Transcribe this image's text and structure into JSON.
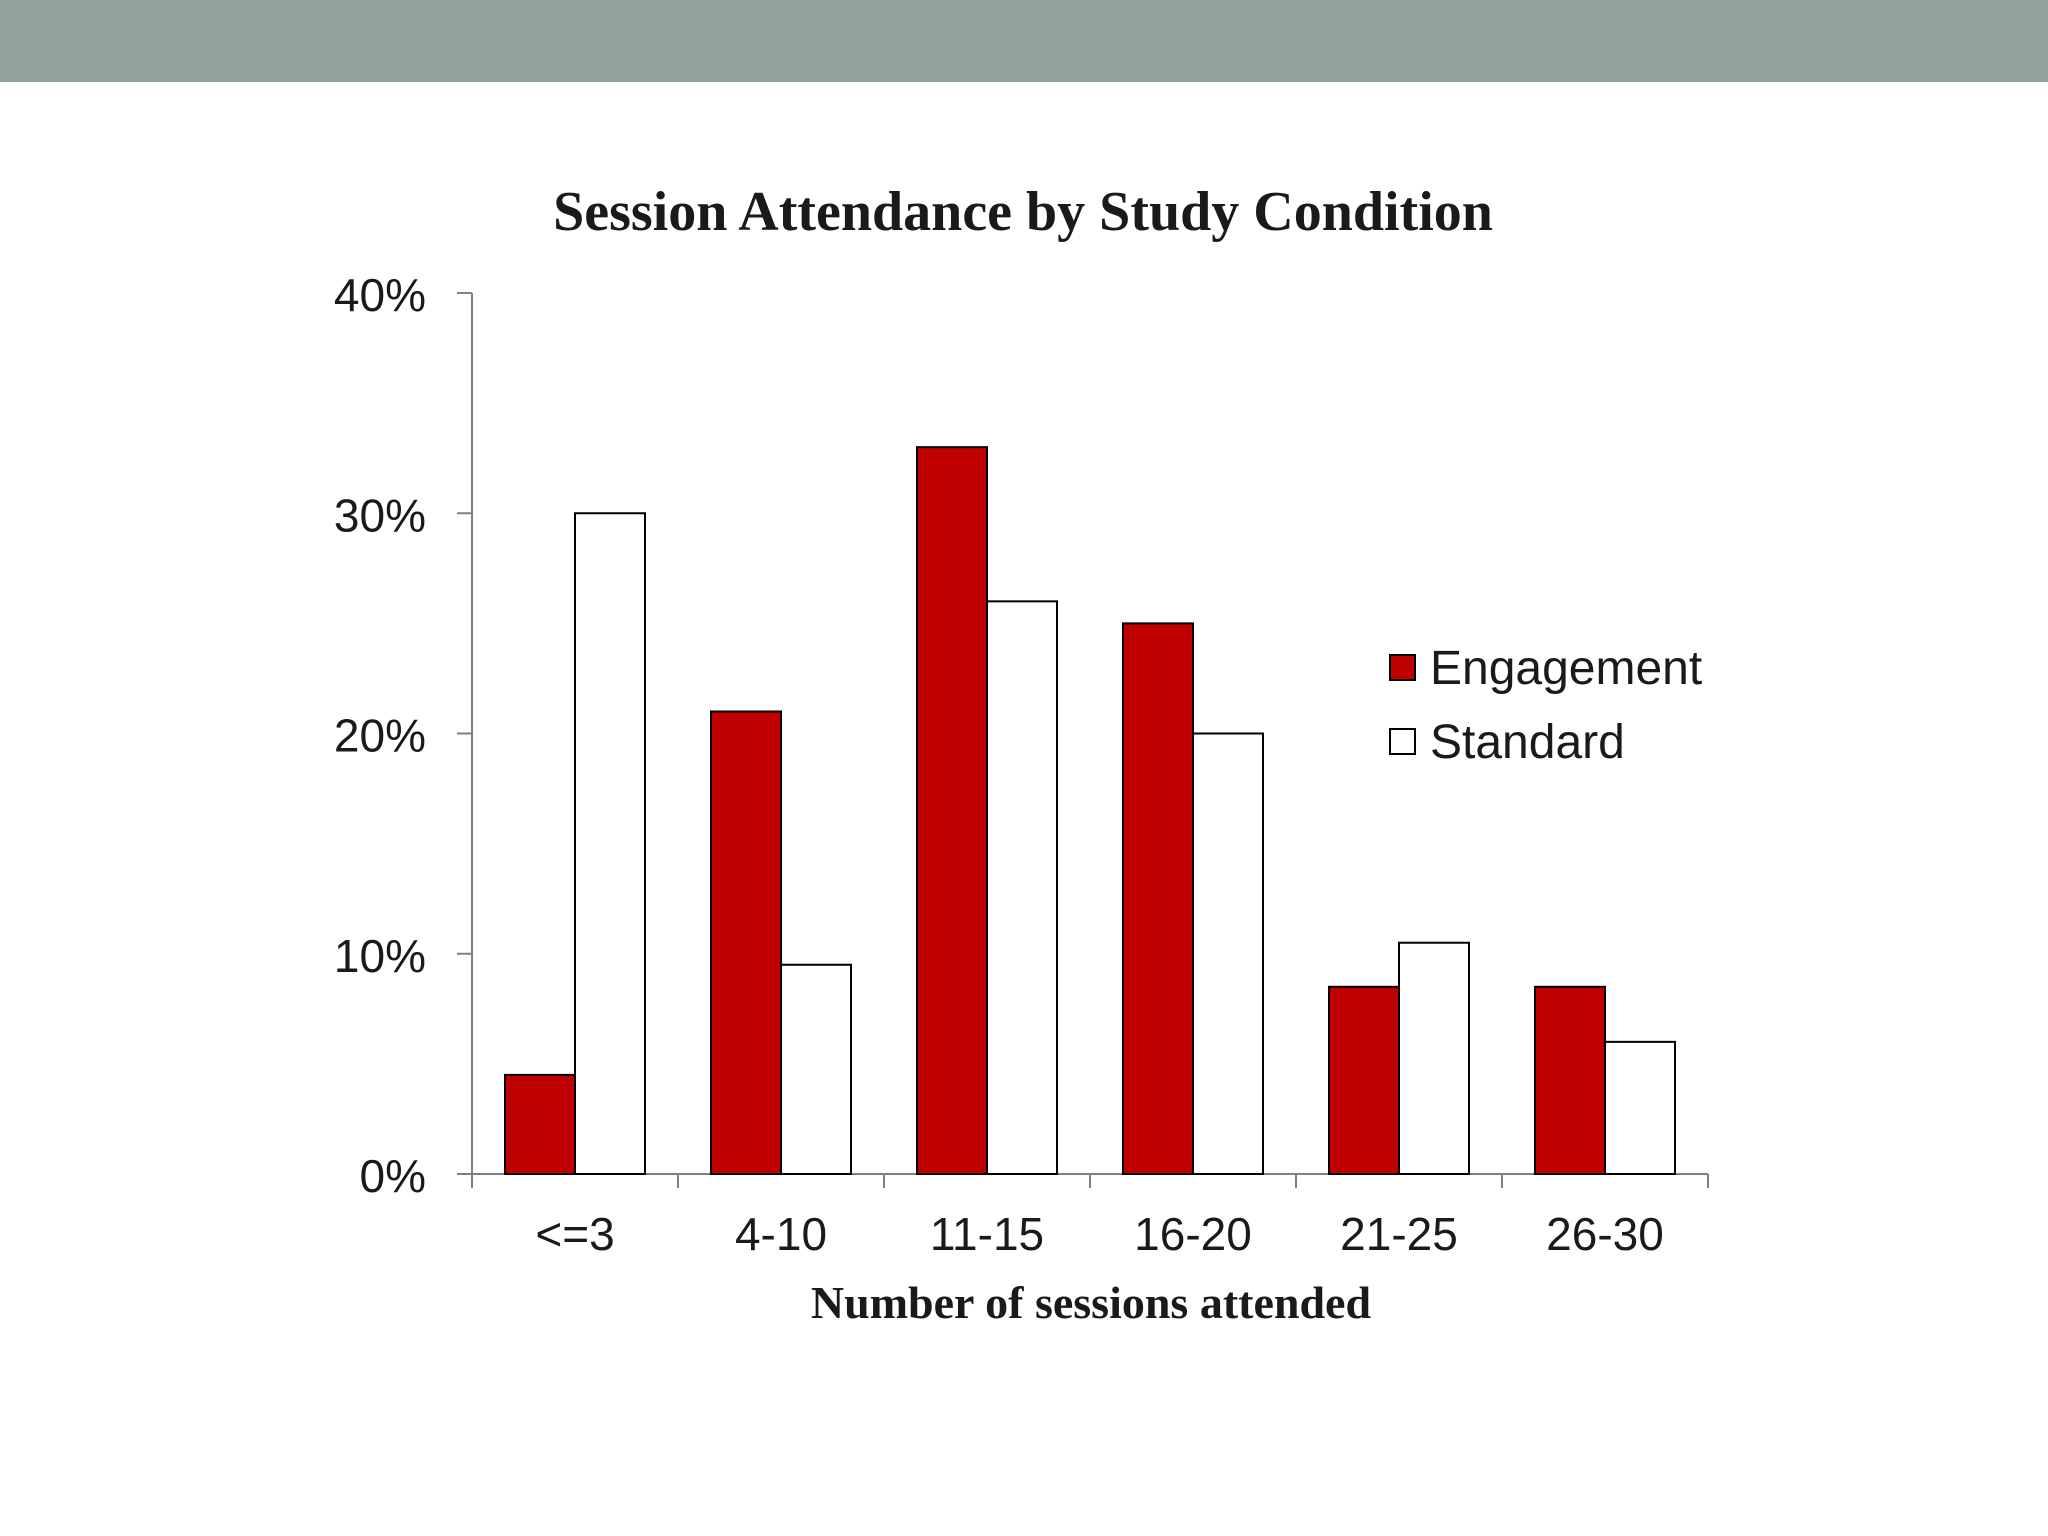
{
  "chart_data": {
    "type": "bar",
    "title": "Session Attendance by Study Condition",
    "xlabel": "Number of sessions attended",
    "ylabel": "",
    "categories": [
      "<=3",
      "4-10",
      "11-15",
      "16-20",
      "21-25",
      "26-30"
    ],
    "series": [
      {
        "name": "Engagement",
        "values": [
          4.5,
          21,
          33,
          25,
          8.5,
          8.5
        ],
        "color": "#c00000"
      },
      {
        "name": "Standard",
        "values": [
          30,
          9.5,
          26,
          20,
          10.5,
          6
        ],
        "color": "#ffffff"
      }
    ],
    "ylim": [
      0,
      40
    ],
    "yticks": [
      0,
      10,
      20,
      30,
      40
    ],
    "ytick_labels": [
      "0%",
      "10%",
      "20%",
      "30%",
      "40%"
    ],
    "grid": false,
    "legend": "right"
  },
  "colors": {
    "header_bar": "#92a39b",
    "bar_outline": "#000000",
    "text": "#1a1a1a",
    "axis": "#808080"
  }
}
